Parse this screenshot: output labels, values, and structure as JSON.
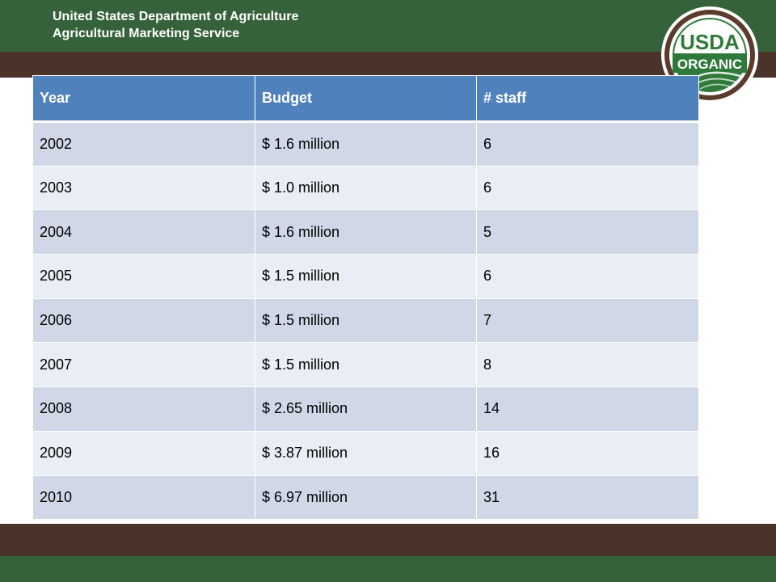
{
  "header": {
    "line1": "United States Department of Agriculture",
    "line2": "Agricultural Marketing Service"
  },
  "logo": {
    "name": "usda-organic-seal",
    "top_text": "USDA",
    "bottom_text": "ORGANIC",
    "colors": {
      "green": "#2f7a3b",
      "brown": "#5a3b2c",
      "cream": "#ffffff"
    }
  },
  "table": {
    "headers": [
      "Year",
      "Budget",
      "# staff"
    ],
    "rows": [
      [
        "2002",
        "$ 1.6 million",
        "6"
      ],
      [
        "2003",
        "$ 1.0 million",
        "6"
      ],
      [
        "2004",
        "$ 1.6 million",
        "5"
      ],
      [
        "2005",
        "$ 1.5 million",
        "6"
      ],
      [
        "2006",
        "$ 1.5 million",
        "7"
      ],
      [
        "2007",
        "$ 1.5 million",
        "8"
      ],
      [
        "2008",
        "$ 2.65 million",
        "14"
      ],
      [
        "2009",
        "$ 3.87 million",
        "16"
      ],
      [
        "2010",
        "$ 6.97 million",
        "31"
      ]
    ]
  },
  "colors": {
    "header_green": "#35623a",
    "band_brown": "#4a342a",
    "table_header": "#4f81bd",
    "row_odd": "#d0d8e8",
    "row_even": "#e9edf4"
  }
}
